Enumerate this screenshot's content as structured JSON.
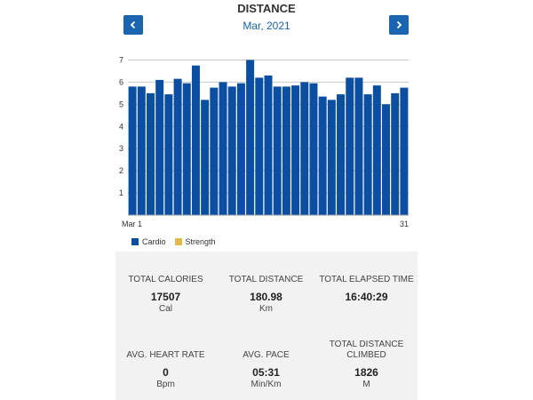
{
  "header": {
    "title": "DISTANCE",
    "month": "Mar, 2021",
    "prev_icon": "chevron-left-icon",
    "next_icon": "chevron-right-icon",
    "accent_color": "#1b64b0"
  },
  "chart_data": {
    "type": "bar",
    "x_start_label": "Mar 1",
    "x_end_label": "31",
    "ylim": [
      0,
      7.5
    ],
    "yticks": [
      1,
      2,
      3,
      4,
      5,
      6,
      7
    ],
    "series": [
      {
        "name": "Cardio",
        "color": "#0b4ea2",
        "values": [
          5.8,
          5.8,
          5.5,
          6.1,
          5.45,
          6.15,
          5.95,
          6.75,
          5.2,
          5.75,
          6.0,
          5.8,
          5.95,
          7.0,
          6.2,
          6.3,
          5.8,
          5.8,
          5.85,
          6.0,
          5.95,
          5.35,
          5.2,
          5.45,
          6.2,
          6.2,
          5.45,
          5.85,
          5.0,
          5.5,
          5.75
        ]
      },
      {
        "name": "Strength",
        "color": "#e6b84a",
        "values": []
      }
    ]
  },
  "legend": [
    {
      "label": "Cardio",
      "color": "#0b4ea2"
    },
    {
      "label": "Strength",
      "color": "#e6b84a"
    }
  ],
  "stats": [
    {
      "label": "TOTAL CALORIES",
      "value": "17507",
      "unit": "Cal"
    },
    {
      "label": "TOTAL DISTANCE",
      "value": "180.98",
      "unit": "Km"
    },
    {
      "label": "TOTAL ELAPSED TIME",
      "value": "16:40:29",
      "unit": ""
    },
    {
      "label": "AVG. HEART RATE",
      "value": "0",
      "unit": "Bpm"
    },
    {
      "label": "AVG. PACE",
      "value": "05:31",
      "unit": "Min/Km"
    },
    {
      "label": "TOTAL DISTANCE CLIMBED",
      "value": "1826",
      "unit": "M"
    }
  ]
}
